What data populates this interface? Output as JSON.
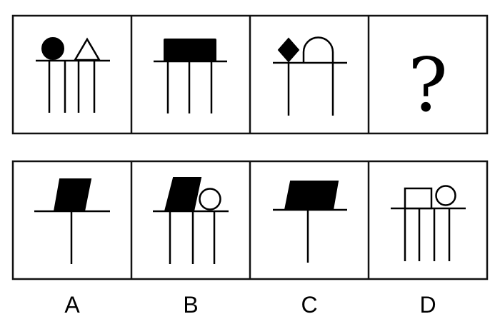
{
  "question_row": {
    "cells": [
      {
        "shapes": [
          "filled-circle",
          "hollow-triangle"
        ],
        "vertical_lines": 4
      },
      {
        "shapes": [
          "filled-rectangle"
        ],
        "vertical_lines": 3
      },
      {
        "shapes": [
          "filled-diamond",
          "hollow-arch"
        ],
        "vertical_lines": 2
      },
      {
        "mark": "?"
      }
    ]
  },
  "options": [
    {
      "label": "A",
      "shapes": [
        "filled-parallelogram"
      ],
      "vertical_lines": 1
    },
    {
      "label": "B",
      "shapes": [
        "filled-parallelogram",
        "hollow-circle"
      ],
      "vertical_lines": 3
    },
    {
      "label": "C",
      "shapes": [
        "filled-parallelogram"
      ],
      "vertical_lines": 1
    },
    {
      "label": "D",
      "shapes": [
        "hollow-rectangle",
        "hollow-circle"
      ],
      "vertical_lines": 4
    }
  ],
  "colors": {
    "ink": "#000000",
    "background": "#ffffff"
  }
}
